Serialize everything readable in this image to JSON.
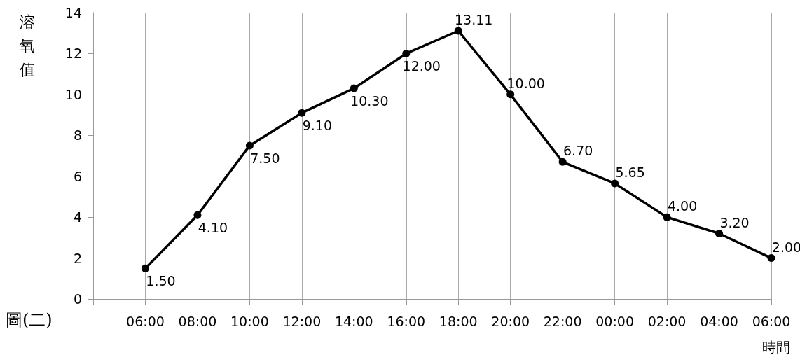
{
  "chart_data": {
    "type": "line",
    "title": "圖(二)",
    "xlabel": "時間",
    "ylabel": "溶氧值",
    "categories": [
      null,
      "06:00",
      "08:00",
      "10:00",
      "12:00",
      "14:00",
      "16:00",
      "18:00",
      "20:00",
      "22:00",
      "00:00",
      "02:00",
      "04:00",
      "06:00"
    ],
    "series": [
      {
        "color": "#000000",
        "values": [
          null,
          1.5,
          4.1,
          7.5,
          9.1,
          10.3,
          12.0,
          13.11,
          10.0,
          6.7,
          5.65,
          4.0,
          3.2,
          2.0
        ],
        "value_labels": [
          null,
          "1.50",
          "4.10",
          "7.50",
          "9.10",
          "10.30",
          "12.00",
          "13.11",
          "10.00",
          "6.70",
          "5.65",
          "4.00",
          "3.20",
          "2.00"
        ]
      }
    ],
    "ylim": [
      0,
      14
    ],
    "yticks": [
      0,
      2,
      4,
      6,
      8,
      10,
      12,
      14
    ],
    "grid": "x",
    "marker": "circle",
    "line_style": "solid"
  }
}
